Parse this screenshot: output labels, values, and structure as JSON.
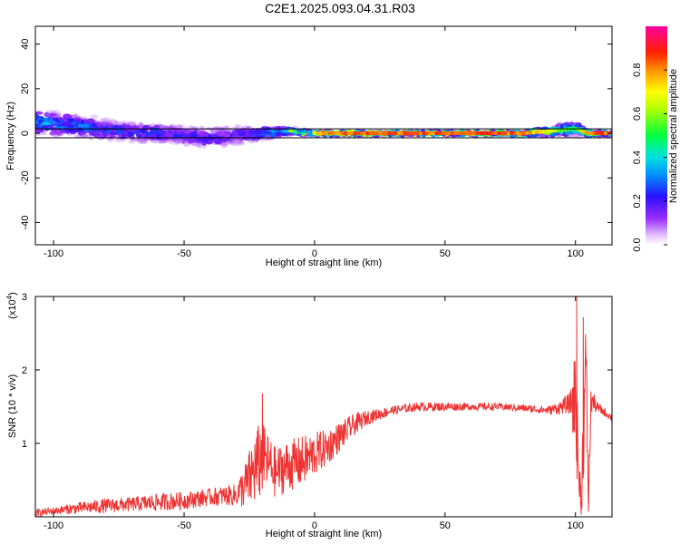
{
  "title": "C2E1.2025.093.04.31.R03",
  "colorbar": {
    "label": "Normalized spectral amplitude",
    "ticks": [
      "0.0",
      "0.2",
      "0.4",
      "0.6",
      "0.8"
    ],
    "range": [
      0,
      1
    ],
    "colormap": "rainbow (violet-blue-cyan-green-yellow-orange-red-magenta)"
  },
  "chart_data": [
    {
      "type": "heatmap",
      "xlabel": "Height of straight line (km)",
      "ylabel": "Frequency (Hz)",
      "xlim": [
        -107,
        114
      ],
      "ylim": [
        -50,
        48
      ],
      "xticks": [
        -100,
        -50,
        0,
        50,
        100
      ],
      "xtick_labels": [
        "-100",
        "-50",
        "0",
        "50",
        "100"
      ],
      "yticks": [
        -40,
        -20,
        0,
        20,
        40
      ],
      "ytick_labels": [
        "-40",
        "-20",
        "0",
        "20",
        "40"
      ],
      "reference_lines_hz": [
        2,
        -2
      ],
      "ridge": {
        "x": [
          -105,
          -90,
          -75,
          -60,
          -50,
          -40,
          -30,
          -20,
          -10,
          0,
          10,
          20,
          40,
          60,
          80,
          100,
          105,
          113
        ],
        "freq": [
          5,
          3,
          1,
          0,
          -1,
          -2,
          -1,
          0,
          1,
          0,
          0,
          0,
          0,
          0,
          0,
          2,
          0,
          0
        ],
        "spread": [
          7,
          7,
          6,
          6,
          6,
          7,
          6,
          4,
          2,
          1,
          1,
          1,
          1,
          1,
          1,
          4,
          1,
          1
        ],
        "amplitude": [
          0.35,
          0.3,
          0.25,
          0.25,
          0.22,
          0.2,
          0.2,
          0.3,
          0.55,
          0.8,
          0.9,
          0.9,
          0.9,
          0.9,
          0.9,
          0.5,
          0.9,
          0.9
        ]
      }
    },
    {
      "type": "line",
      "xlabel": "Height of straight line (km)",
      "ylabel": "SNR (10 * v/v)",
      "multiplier_label": "(x10",
      "multiplier_exp": "4",
      "multiplier_close": ")",
      "xlim": [
        -107,
        114
      ],
      "ylim": [
        0,
        3
      ],
      "xticks": [
        -100,
        -50,
        0,
        50,
        100
      ],
      "xtick_labels": [
        "-100",
        "-50",
        "0",
        "50",
        "100"
      ],
      "yticks": [
        1,
        2,
        3
      ],
      "ytick_labels": [
        "1",
        "2",
        "3"
      ],
      "color": "#ee3333",
      "series": [
        {
          "x": [
            -107,
            -100,
            -90,
            -80,
            -70,
            -60,
            -50,
            -40,
            -30,
            -26,
            -22,
            -20,
            -18,
            -15,
            -10,
            -5,
            0,
            5,
            10,
            15,
            20,
            30,
            40,
            50,
            60,
            70,
            80,
            90,
            95,
            98,
            100,
            101,
            102,
            103,
            104,
            105,
            106,
            108,
            110,
            114
          ],
          "values": [
            0.05,
            0.08,
            0.12,
            0.15,
            0.17,
            0.2,
            0.22,
            0.27,
            0.3,
            0.45,
            0.7,
            0.8,
            0.75,
            0.6,
            0.7,
            0.75,
            0.85,
            0.95,
            1.1,
            1.25,
            1.35,
            1.45,
            1.5,
            1.5,
            1.5,
            1.5,
            1.48,
            1.45,
            1.5,
            1.55,
            1.6,
            0.8,
            0.2,
            1.0,
            2.2,
            0.2,
            1.6,
            1.5,
            1.45,
            1.35
          ],
          "noise": [
            0.05,
            0.05,
            0.08,
            0.1,
            0.1,
            0.12,
            0.12,
            0.12,
            0.15,
            0.35,
            0.55,
            0.5,
            0.4,
            0.35,
            0.35,
            0.35,
            0.3,
            0.25,
            0.2,
            0.15,
            0.1,
            0.06,
            0.06,
            0.06,
            0.05,
            0.05,
            0.05,
            0.06,
            0.1,
            0.15,
            0.8,
            0.5,
            0.4,
            0.6,
            0.5,
            0.3,
            0.2,
            0.08,
            0.06,
            0.05
          ]
        }
      ],
      "peaks": [
        {
          "x": -20,
          "value": 1.68
        },
        {
          "x": 100.5,
          "value": 3.0
        },
        {
          "x": 103,
          "value": 2.72
        },
        {
          "x": 102,
          "value": 0.15
        }
      ]
    }
  ]
}
